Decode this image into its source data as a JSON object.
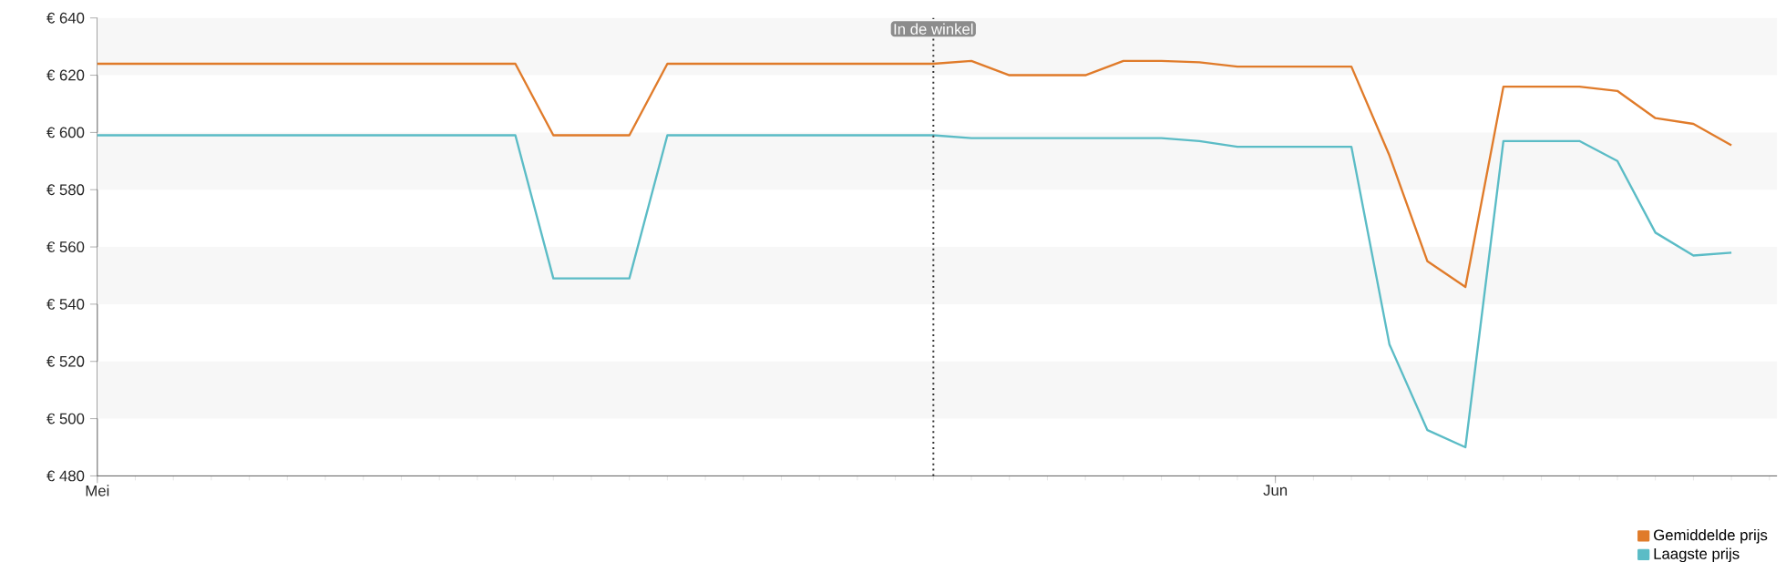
{
  "chart_data": {
    "type": "line",
    "categories": [
      "Mei",
      null,
      null,
      null,
      null,
      null,
      null,
      null,
      null,
      null,
      null,
      null,
      null,
      null,
      null,
      null,
      null,
      null,
      null,
      null,
      null,
      null,
      null,
      null,
      null,
      null,
      null,
      null,
      null,
      null,
      null,
      "Jun",
      null,
      null,
      null,
      null,
      null,
      null,
      null,
      null,
      null,
      null,
      null,
      null
    ],
    "series": [
      {
        "name": "Gemiddelde prijs",
        "color": "#e07b2a",
        "values": [
          624,
          624,
          624,
          624,
          624,
          624,
          624,
          624,
          624,
          624,
          624,
          624,
          599,
          599,
          599,
          624,
          624,
          624,
          624,
          624,
          624,
          624,
          624,
          625,
          620,
          620,
          620,
          625,
          625,
          624.5,
          623,
          623,
          623,
          623,
          592,
          555,
          546,
          616,
          616,
          616,
          614.5,
          605,
          603,
          595.5
        ]
      },
      {
        "name": "Laagste prijs",
        "color": "#5bbcc6",
        "values": [
          599,
          599,
          599,
          599,
          599,
          599,
          599,
          599,
          599,
          599,
          599,
          599,
          549,
          549,
          549,
          599,
          599,
          599,
          599,
          599,
          599,
          599,
          599,
          598,
          598,
          598,
          598,
          598,
          598,
          597,
          595,
          595,
          595,
          595,
          526,
          496,
          490,
          597,
          597,
          597,
          590,
          565,
          557,
          558
        ]
      }
    ],
    "ylim": [
      480,
      640
    ],
    "yticks": [
      {
        "value": 480,
        "label": "€ 480"
      },
      {
        "value": 500,
        "label": "€ 500"
      },
      {
        "value": 520,
        "label": "€ 520"
      },
      {
        "value": 540,
        "label": "€ 540"
      },
      {
        "value": 560,
        "label": "€ 560"
      },
      {
        "value": 580,
        "label": "€ 580"
      },
      {
        "value": 600,
        "label": "€ 600"
      },
      {
        "value": 620,
        "label": "€ 620"
      },
      {
        "value": 640,
        "label": "€ 640"
      }
    ],
    "bands": [
      {
        "axis": "y",
        "from": 620,
        "to": 640,
        "color": "#f7f7f7"
      },
      {
        "axis": "y",
        "from": 580,
        "to": 600,
        "color": "#f7f7f7"
      },
      {
        "axis": "y",
        "from": 540,
        "to": 560,
        "color": "#f7f7f7"
      },
      {
        "axis": "y",
        "from": 500,
        "to": 520,
        "color": "#f7f7f7"
      }
    ],
    "annotations": [
      "In de winkel"
    ],
    "legend": "bottom right",
    "marker": "none",
    "line_style": "solid"
  }
}
